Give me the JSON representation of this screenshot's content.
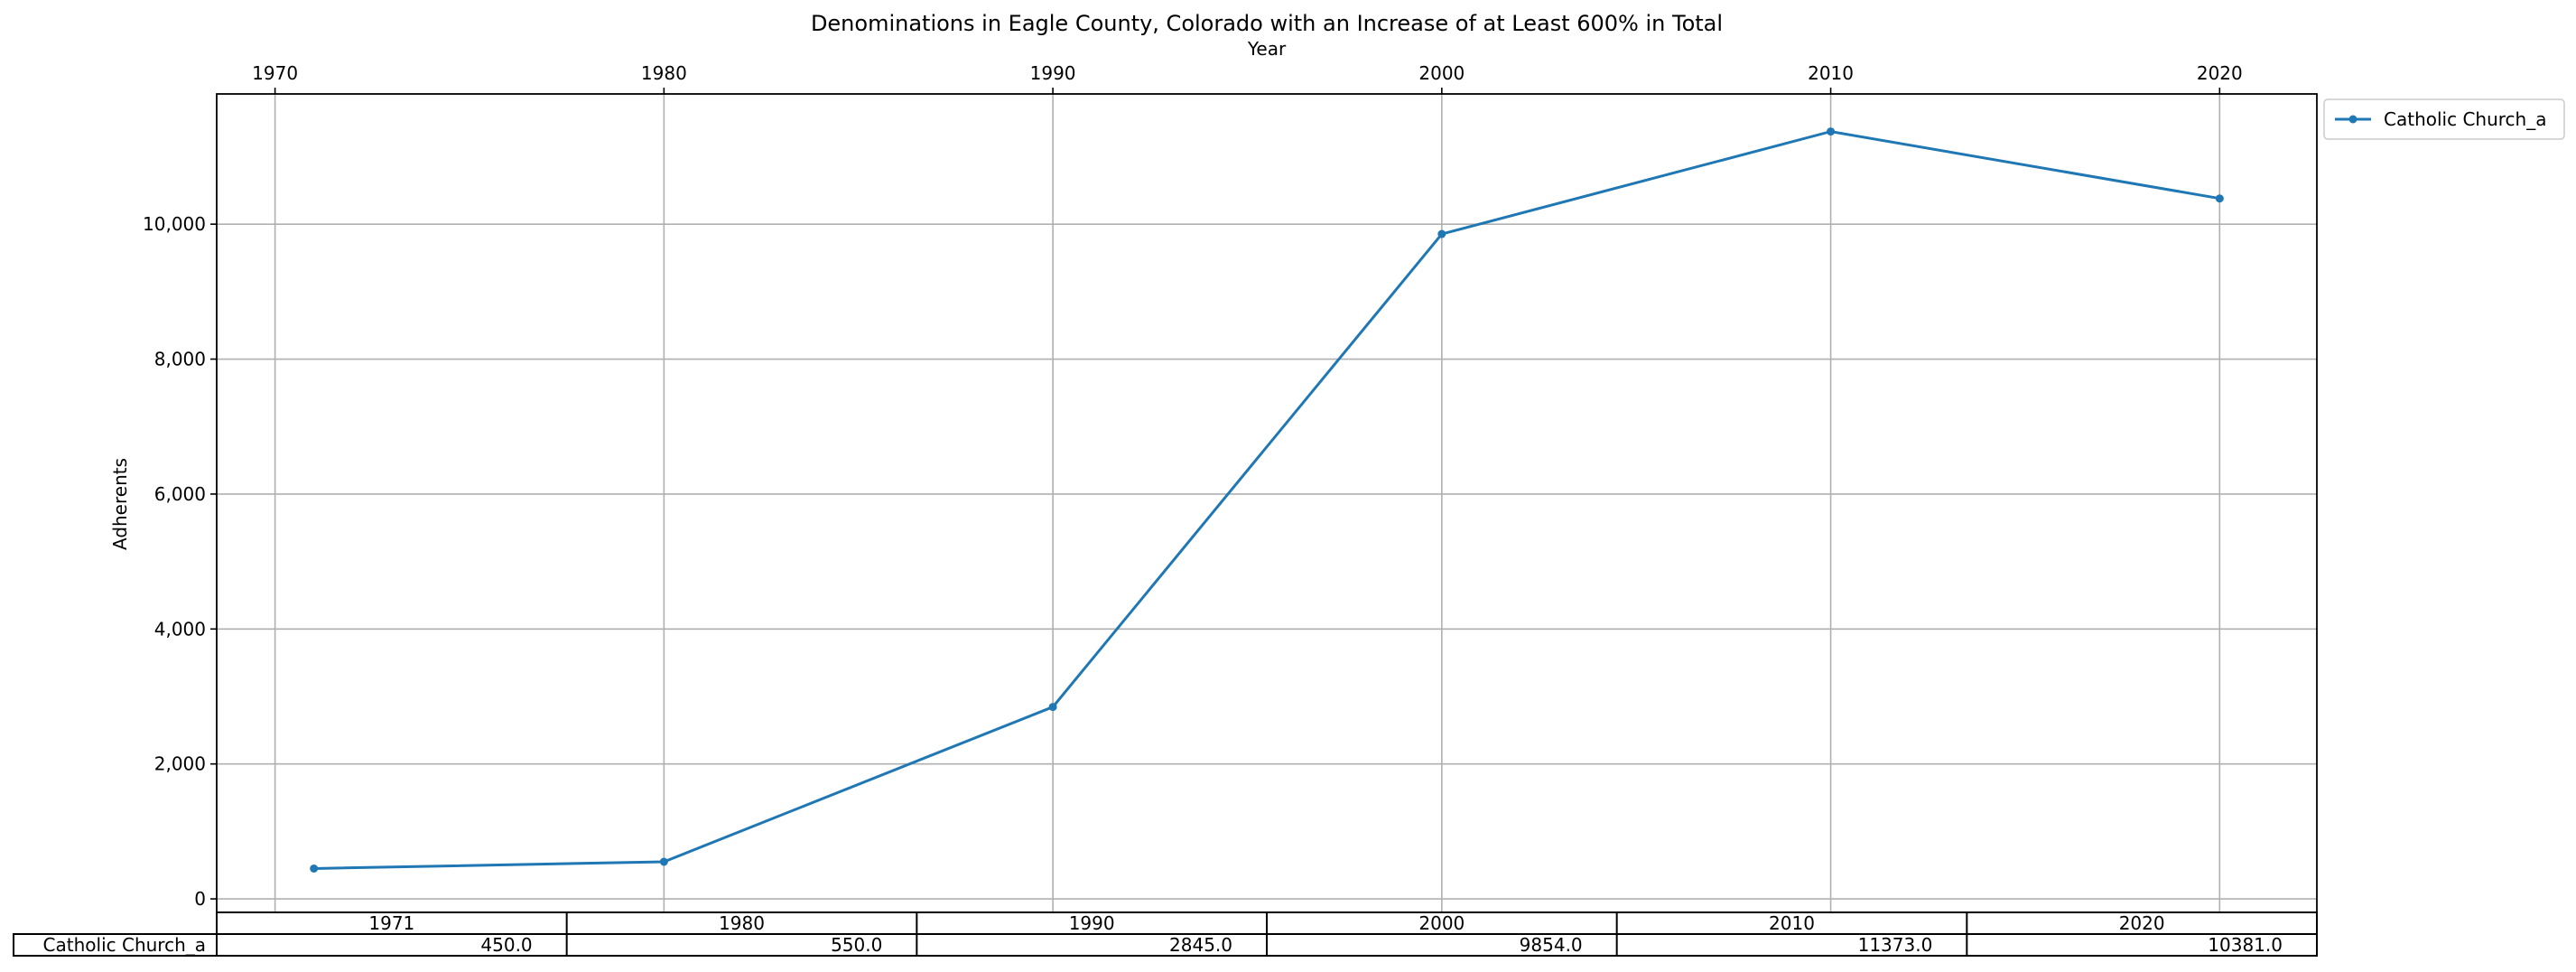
{
  "chart_data": {
    "type": "line",
    "title": "Denominations in Eagle County, Colorado with an Increase of at Least 600% in Total",
    "xlabel": "Year",
    "ylabel": "Adherents",
    "x": [
      1971,
      1980,
      1990,
      2000,
      2010,
      2020
    ],
    "xticks": [
      "1970",
      "1980",
      "1990",
      "2000",
      "2010",
      "2020"
    ],
    "xlim": [
      1968.5,
      2022.5
    ],
    "yticks": [
      "0",
      "2,000",
      "4,000",
      "6,000",
      "8,000",
      "10,000"
    ],
    "ylim": [
      -200,
      11930
    ],
    "grid": true,
    "legend_position": "outside-top-right",
    "series": [
      {
        "name": "Catholic Church_a",
        "color": "#1f77b4",
        "values": [
          450,
          550,
          2845,
          9854,
          11373,
          10381
        ]
      }
    ],
    "table": {
      "columns": [
        "1971",
        "1980",
        "1990",
        "2000",
        "2010",
        "2020"
      ],
      "rows": [
        {
          "label": "Catholic Church_a",
          "cells": [
            "450.0",
            "550.0",
            "2845.0",
            "9854.0",
            "11373.0",
            "10381.0"
          ]
        }
      ]
    }
  }
}
